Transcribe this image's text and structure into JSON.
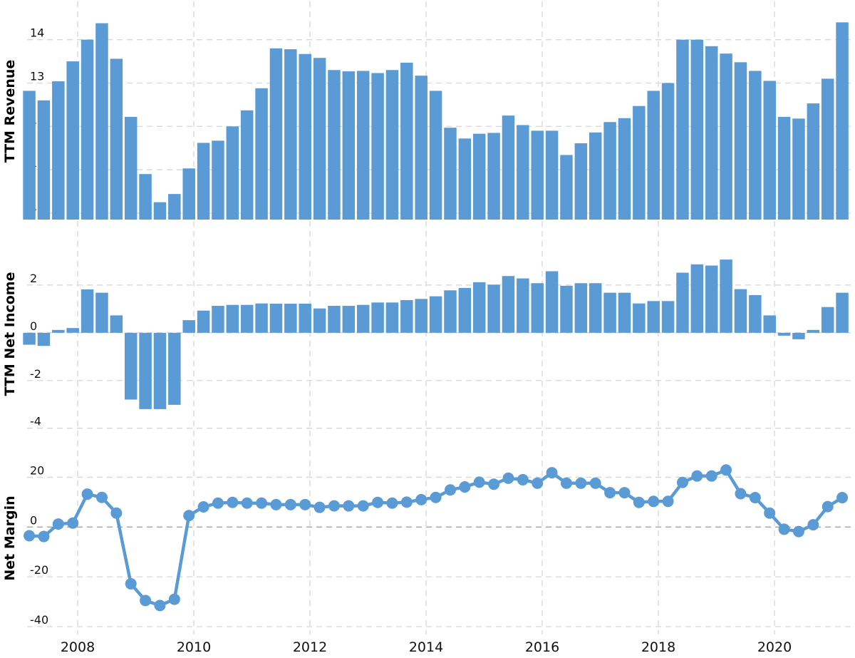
{
  "chart_data": [
    {
      "type": "bar",
      "ylabel": "TTM Revenue",
      "ylim": [
        9.85,
        14.85
      ],
      "yticks": [
        "10",
        "11",
        "12",
        "13",
        "14"
      ],
      "grid": true,
      "series": [
        {
          "x": [
            "2007-03",
            "2007-06",
            "2007-09",
            "2007-12",
            "2008-03",
            "2008-06",
            "2008-09",
            "2008-12",
            "2009-03",
            "2009-06",
            "2009-09",
            "2009-12",
            "2010-03",
            "2010-06",
            "2010-09",
            "2010-12",
            "2011-03",
            "2011-06",
            "2011-09",
            "2011-12",
            "2012-03",
            "2012-06",
            "2012-09",
            "2012-12",
            "2013-03",
            "2013-06",
            "2013-09",
            "2013-12",
            "2014-03",
            "2014-06",
            "2014-09",
            "2014-12",
            "2015-03",
            "2015-06",
            "2015-09",
            "2015-12",
            "2016-03",
            "2016-06",
            "2016-09",
            "2016-12",
            "2017-03",
            "2017-06",
            "2017-09",
            "2017-12",
            "2018-03",
            "2018-06",
            "2018-09",
            "2018-12",
            "2019-03",
            "2019-06",
            "2019-09",
            "2019-12",
            "2020-03",
            "2020-06",
            "2020-09",
            "2020-12",
            "2021-03"
          ],
          "values": [
            12.82,
            12.6,
            13.04,
            13.5,
            14.0,
            14.38,
            13.56,
            12.22,
            10.9,
            10.25,
            10.44,
            11.03,
            11.62,
            11.67,
            12.0,
            12.37,
            12.88,
            13.8,
            13.78,
            13.67,
            13.58,
            13.3,
            13.27,
            13.28,
            13.23,
            13.3,
            13.47,
            13.17,
            12.82,
            11.97,
            11.72,
            11.83,
            11.85,
            12.25,
            12.03,
            11.9,
            11.9,
            11.34,
            11.61,
            11.86,
            12.1,
            12.19,
            12.47,
            12.82,
            13.0,
            14.0,
            14.0,
            13.85,
            13.68,
            13.48,
            13.28,
            13.05,
            12.22,
            12.18,
            12.53,
            13.1,
            14.4
          ]
        }
      ]
    },
    {
      "type": "bar",
      "ylabel": "TTM Net Income",
      "ylim": [
        -3.95,
        3.85
      ],
      "yticks": [
        "-4",
        "-2",
        "0",
        "2"
      ],
      "grid": true,
      "series": [
        {
          "x": [
            "2007-03",
            "2007-06",
            "2007-09",
            "2007-12",
            "2008-03",
            "2008-06",
            "2008-09",
            "2008-12",
            "2009-03",
            "2009-06",
            "2009-09",
            "2009-12",
            "2010-03",
            "2010-06",
            "2010-09",
            "2010-12",
            "2011-03",
            "2011-06",
            "2011-09",
            "2011-12",
            "2012-03",
            "2012-06",
            "2012-09",
            "2012-12",
            "2013-03",
            "2013-06",
            "2013-09",
            "2013-12",
            "2014-03",
            "2014-06",
            "2014-09",
            "2014-12",
            "2015-03",
            "2015-06",
            "2015-09",
            "2015-12",
            "2016-03",
            "2016-06",
            "2016-09",
            "2016-12",
            "2017-03",
            "2017-06",
            "2017-09",
            "2017-12",
            "2018-03",
            "2018-06",
            "2018-09",
            "2018-12",
            "2019-03",
            "2019-06",
            "2019-09",
            "2019-12",
            "2020-03",
            "2020-06",
            "2020-09",
            "2020-12",
            "2021-03"
          ],
          "values": [
            -0.5,
            -0.55,
            0.12,
            0.2,
            1.82,
            1.68,
            0.73,
            -2.8,
            -3.2,
            -3.2,
            -3.02,
            0.53,
            0.93,
            1.13,
            1.17,
            1.17,
            1.23,
            1.22,
            1.22,
            1.22,
            1.02,
            1.13,
            1.13,
            1.17,
            1.27,
            1.27,
            1.37,
            1.42,
            1.53,
            1.78,
            1.88,
            2.12,
            2.02,
            2.38,
            2.28,
            2.08,
            2.58,
            1.97,
            2.08,
            2.08,
            1.68,
            1.68,
            1.23,
            1.33,
            1.33,
            2.52,
            2.87,
            2.82,
            3.07,
            1.83,
            1.58,
            0.73,
            -0.12,
            -0.27,
            0.12,
            1.08,
            1.68
          ]
        }
      ]
    },
    {
      "type": "line",
      "ylabel": "Net Margin",
      "ylim": [
        -42,
        33
      ],
      "yticks": [
        "-40",
        "-20",
        "0",
        "20"
      ],
      "grid": true,
      "series": [
        {
          "x": [
            "2007-03",
            "2007-06",
            "2007-09",
            "2007-12",
            "2008-03",
            "2008-06",
            "2008-09",
            "2008-12",
            "2009-03",
            "2009-06",
            "2009-09",
            "2009-12",
            "2010-03",
            "2010-06",
            "2010-09",
            "2010-12",
            "2011-03",
            "2011-06",
            "2011-09",
            "2011-12",
            "2012-03",
            "2012-06",
            "2012-09",
            "2012-12",
            "2013-03",
            "2013-06",
            "2013-09",
            "2013-12",
            "2014-03",
            "2014-06",
            "2014-09",
            "2014-12",
            "2015-03",
            "2015-06",
            "2015-09",
            "2015-12",
            "2016-03",
            "2016-06",
            "2016-09",
            "2016-12",
            "2017-03",
            "2017-06",
            "2017-09",
            "2017-12",
            "2018-03",
            "2018-06",
            "2018-09",
            "2018-12",
            "2019-03",
            "2019-06",
            "2019-09",
            "2019-12",
            "2020-03",
            "2020-06",
            "2020-09",
            "2020-12",
            "2021-03"
          ],
          "values": [
            -3.5,
            -3.8,
            1.2,
            1.6,
            13.2,
            11.9,
            5.6,
            -22.8,
            -29.5,
            -31.5,
            -29.0,
            4.6,
            8.1,
            9.6,
            9.9,
            9.6,
            9.6,
            9.0,
            9.0,
            9.0,
            7.9,
            8.5,
            8.5,
            8.5,
            9.9,
            9.6,
            10.0,
            11.0,
            11.9,
            14.9,
            16.1,
            18.0,
            17.2,
            19.6,
            19.0,
            17.6,
            21.8,
            17.6,
            17.6,
            17.6,
            13.8,
            13.8,
            9.9,
            10.3,
            10.3,
            17.9,
            20.5,
            20.5,
            22.9,
            13.4,
            11.8,
            5.6,
            -0.9,
            -1.8,
            0.9,
            8.2,
            11.8
          ]
        }
      ]
    }
  ],
  "x_axis": {
    "ticks": [
      "2008",
      "2010",
      "2012",
      "2014",
      "2016",
      "2018",
      "2020"
    ]
  }
}
